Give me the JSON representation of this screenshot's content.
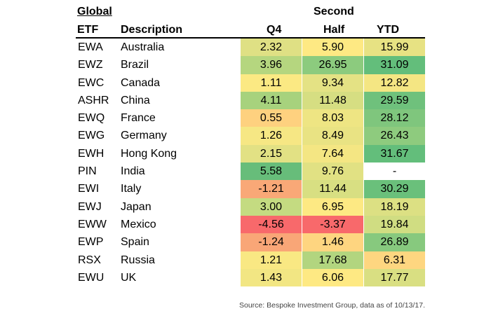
{
  "header": {
    "global": "Global",
    "second": "Second",
    "etf": "ETF",
    "description": "Description",
    "q4": "Q4",
    "half": "Half",
    "ytd": "YTD"
  },
  "chart_data": {
    "type": "table",
    "columns": [
      "ETF",
      "Description",
      "Q4",
      "Second Half",
      "YTD"
    ],
    "rows": [
      {
        "etf": "EWA",
        "description": "Australia",
        "q4": "2.32",
        "half": "5.90",
        "ytd": "15.99"
      },
      {
        "etf": "EWZ",
        "description": "Brazil",
        "q4": "3.96",
        "half": "26.95",
        "ytd": "31.09"
      },
      {
        "etf": "EWC",
        "description": "Canada",
        "q4": "1.11",
        "half": "9.34",
        "ytd": "12.82"
      },
      {
        "etf": "ASHR",
        "description": "China",
        "q4": "4.11",
        "half": "11.48",
        "ytd": "29.59"
      },
      {
        "etf": "EWQ",
        "description": "France",
        "q4": "0.55",
        "half": "8.03",
        "ytd": "28.12"
      },
      {
        "etf": "EWG",
        "description": "Germany",
        "q4": "1.26",
        "half": "8.49",
        "ytd": "26.43"
      },
      {
        "etf": "EWH",
        "description": "Hong Kong",
        "q4": "2.15",
        "half": "7.64",
        "ytd": "31.67"
      },
      {
        "etf": "PIN",
        "description": "India",
        "q4": "5.58",
        "half": "9.76",
        "ytd": "-"
      },
      {
        "etf": "EWI",
        "description": "Italy",
        "q4": "-1.21",
        "half": "11.44",
        "ytd": "30.29"
      },
      {
        "etf": "EWJ",
        "description": "Japan",
        "q4": "3.00",
        "half": "6.95",
        "ytd": "18.19"
      },
      {
        "etf": "EWW",
        "description": "Mexico",
        "q4": "-4.56",
        "half": "-3.37",
        "ytd": "19.84"
      },
      {
        "etf": "EWP",
        "description": "Spain",
        "q4": "-1.24",
        "half": "1.46",
        "ytd": "26.89"
      },
      {
        "etf": "RSX",
        "description": "Russia",
        "q4": "1.21",
        "half": "17.68",
        "ytd": "6.31"
      },
      {
        "etf": "EWU",
        "description": "UK",
        "q4": "1.43",
        "half": "6.06",
        "ytd": "17.77"
      }
    ],
    "cell_colors": {
      "q4": [
        "#dfe084",
        "#b5d67f",
        "#fbe983",
        "#a7d27d",
        "#fed17f",
        "#f6e784",
        "#e2e184",
        "#67bd7a",
        "#f9a877",
        "#c4db81",
        "#f8696b",
        "#f9a677",
        "#f9e883",
        "#f2e683"
      ],
      "half": [
        "#fee983",
        "#8ccb7e",
        "#e4e284",
        "#d6de82",
        "#eee583",
        "#e9e383",
        "#f4e683",
        "#e1e183",
        "#d8df82",
        "#fde983",
        "#f8696b",
        "#fed580",
        "#b2d57f",
        "#fee983"
      ],
      "ytd": [
        "#e7e283",
        "#63be7b",
        "#f4e683",
        "#6fc17c",
        "#7fc67d",
        "#8ecb7e",
        "#63be7b",
        "#ffffff",
        "#6ac07b",
        "#dce083",
        "#d0dd82",
        "#87c97e",
        "#fed680",
        "#d9df82"
      ]
    }
  },
  "source": "Source: Bespoke Investment Group, data as of 10/13/17."
}
